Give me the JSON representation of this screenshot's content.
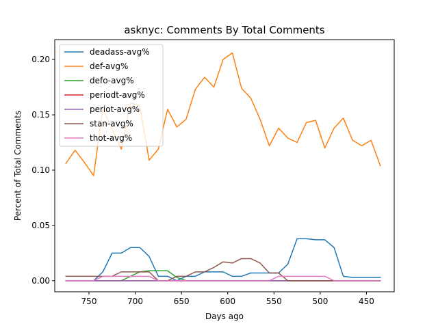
{
  "chart_data": {
    "type": "line",
    "title": "asknyc: Comments By Total Comments",
    "xlabel": "Days ago",
    "ylabel": "Percent of Total Comments",
    "xlim": [
      787,
      420
    ],
    "ylim": [
      -0.01,
      0.218
    ],
    "x_reversed": true,
    "grid": false,
    "legend_position": "top-left",
    "xticks": [
      750,
      700,
      650,
      600,
      550,
      500,
      450
    ],
    "xtick_labels": [
      "750",
      "700",
      "650",
      "600",
      "550",
      "500",
      "450"
    ],
    "yticks": [
      0.0,
      0.05,
      0.1,
      0.15,
      0.2
    ],
    "ytick_labels": [
      "0.00",
      "0.05",
      "0.10",
      "0.15",
      "0.20"
    ],
    "x": [
      775,
      765,
      755,
      745,
      735,
      725,
      715,
      705,
      695,
      685,
      675,
      665,
      655,
      645,
      635,
      625,
      615,
      605,
      595,
      585,
      575,
      565,
      555,
      545,
      535,
      525,
      515,
      505,
      495,
      485,
      475,
      465,
      455,
      445,
      435
    ],
    "series": [
      {
        "name": "deadass-avg%",
        "color": "#1f77b4",
        "values": [
          0.0,
          0.0,
          0.0,
          0.0,
          0.008,
          0.025,
          0.025,
          0.03,
          0.03,
          0.022,
          0.004,
          0.004,
          0.0,
          0.004,
          0.004,
          0.008,
          0.008,
          0.008,
          0.004,
          0.004,
          0.007,
          0.007,
          0.007,
          0.007,
          0.015,
          0.038,
          0.038,
          0.037,
          0.037,
          0.03,
          0.004,
          0.003,
          0.003,
          0.003,
          0.003
        ]
      },
      {
        "name": "def-avg%",
        "color": "#ff7f0e",
        "values": [
          0.106,
          0.118,
          0.107,
          0.095,
          0.156,
          0.137,
          0.119,
          0.161,
          0.158,
          0.109,
          0.119,
          0.155,
          0.139,
          0.146,
          0.173,
          0.184,
          0.175,
          0.2,
          0.206,
          0.174,
          0.165,
          0.146,
          0.122,
          0.138,
          0.129,
          0.125,
          0.143,
          0.145,
          0.12,
          0.138,
          0.147,
          0.127,
          0.122,
          0.127,
          0.104
        ]
      },
      {
        "name": "defo-avg%",
        "color": "#2ca02c",
        "values": [
          0.0,
          0.0,
          0.0,
          0.0,
          0.0,
          0.0,
          0.0,
          0.004,
          0.008,
          0.009,
          0.009,
          0.009,
          0.003,
          0.0,
          0.0,
          0.0,
          0.0,
          0.0,
          0.0,
          0.0,
          0.0,
          0.0,
          0.0,
          0.0,
          0.0,
          0.0,
          0.0,
          0.0,
          0.0,
          0.0,
          0.0,
          0.0,
          0.0,
          0.0,
          0.0
        ]
      },
      {
        "name": "periodt-avg%",
        "color": "#d62728",
        "values": [
          0.0,
          0.0,
          0.0,
          0.0,
          0.0,
          0.0,
          0.0,
          0.0,
          0.0,
          0.0,
          0.0,
          0.0,
          0.0,
          0.0,
          0.0,
          0.0,
          0.0,
          0.0,
          0.0,
          0.0,
          0.0,
          0.0,
          0.0,
          0.0,
          0.0,
          0.0,
          0.0,
          0.0,
          0.0,
          0.0,
          0.0,
          0.0,
          0.0,
          0.0,
          0.0
        ]
      },
      {
        "name": "periot-avg%",
        "color": "#9467bd",
        "values": [
          0.0,
          0.0,
          0.0,
          0.0,
          0.0,
          0.0,
          0.0,
          0.0,
          0.0,
          0.0,
          0.0,
          0.0,
          0.0,
          0.0,
          0.0,
          0.0,
          0.0,
          0.0,
          0.0,
          0.0,
          0.0,
          0.0,
          0.0,
          0.0,
          0.0,
          0.0,
          0.0,
          0.0,
          0.0,
          0.0,
          0.0,
          0.0,
          0.0,
          0.0,
          0.0
        ]
      },
      {
        "name": "stan-avg%",
        "color": "#8c564b",
        "values": [
          0.004,
          0.004,
          0.004,
          0.004,
          0.004,
          0.004,
          0.008,
          0.008,
          0.008,
          0.008,
          0.0,
          0.0,
          0.004,
          0.004,
          0.008,
          0.008,
          0.012,
          0.017,
          0.016,
          0.02,
          0.02,
          0.016,
          0.007,
          0.007,
          0.0,
          0.0,
          0.0,
          0.0,
          0.0,
          0.0,
          0.0,
          0.0,
          0.0,
          0.0,
          0.0
        ]
      },
      {
        "name": "thot-avg%",
        "color": "#e377c2",
        "values": [
          0.0,
          0.0,
          0.0,
          0.0,
          0.004,
          0.004,
          0.004,
          0.004,
          0.004,
          0.004,
          0.0,
          0.0,
          0.0,
          0.0,
          0.0,
          0.0,
          0.0,
          0.0,
          0.0,
          0.0,
          0.0,
          0.0,
          0.0,
          0.004,
          0.004,
          0.004,
          0.004,
          0.004,
          0.004,
          0.0,
          0.0,
          0.0,
          0.0,
          0.0,
          0.0
        ]
      }
    ]
  }
}
